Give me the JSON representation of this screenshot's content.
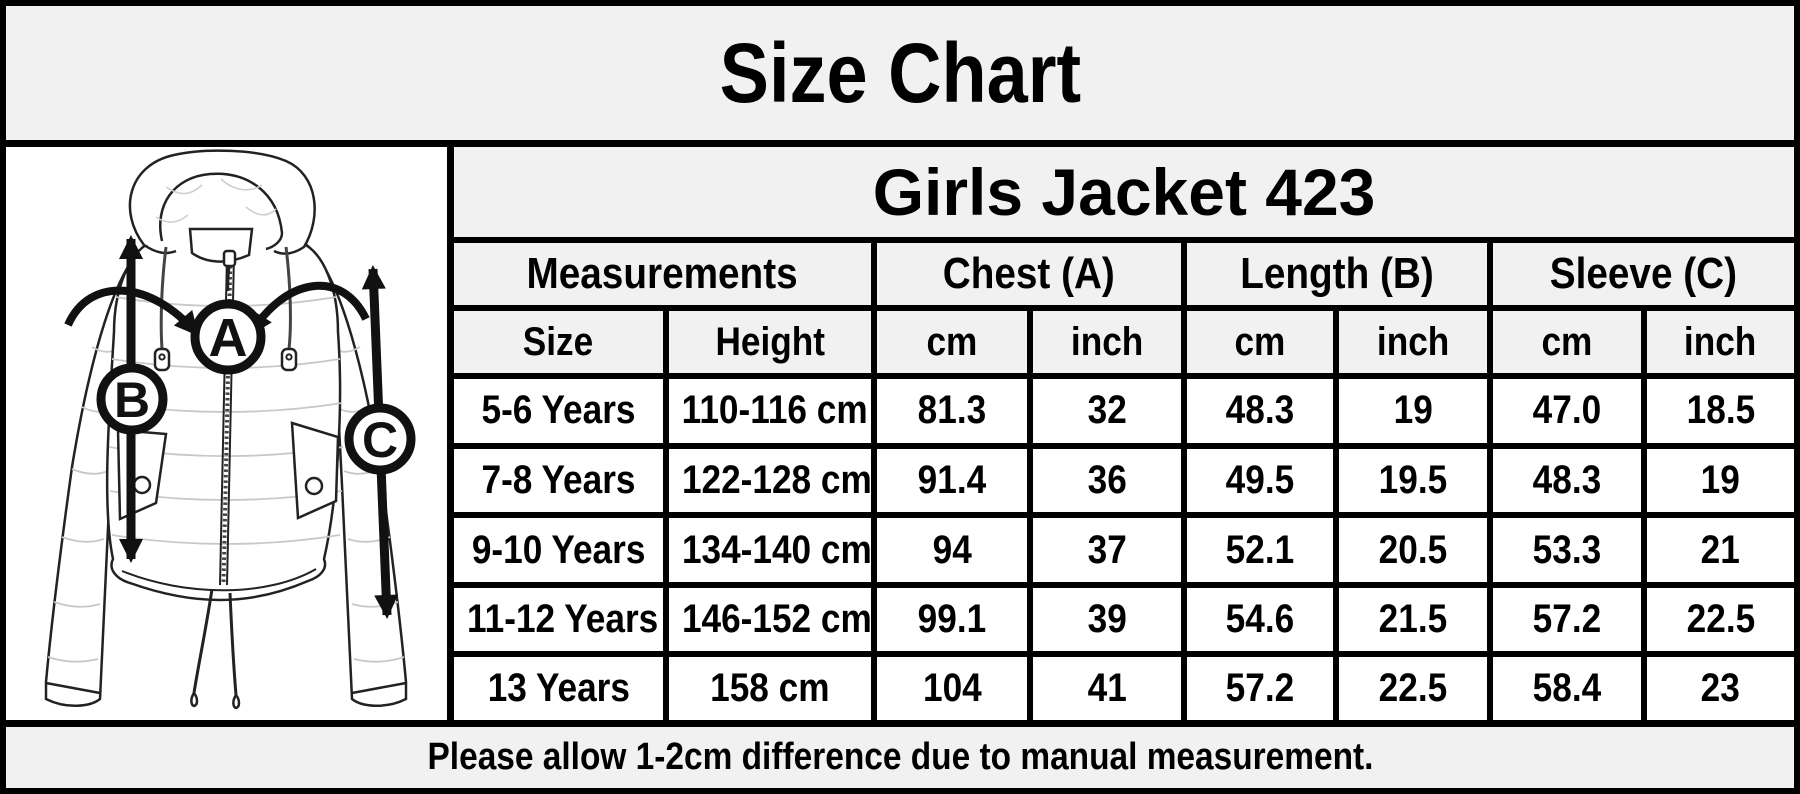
{
  "title": "Size Chart",
  "product_title": "Girls Jacket 423",
  "diagram": {
    "labels": {
      "chest": "A",
      "length": "B",
      "sleeve": "C"
    }
  },
  "table": {
    "group_headers": [
      {
        "label": "Measurements"
      },
      {
        "label": "Chest (A)"
      },
      {
        "label": "Length (B)"
      },
      {
        "label": "Sleeve (C)"
      }
    ],
    "sub_headers": [
      "Size",
      "Height",
      "cm",
      "inch",
      "cm",
      "inch",
      "cm",
      "inch"
    ],
    "rows": [
      [
        "5-6 Years",
        "110-116 cm",
        "81.3",
        "32",
        "48.3",
        "19",
        "47.0",
        "18.5"
      ],
      [
        "7-8 Years",
        "122-128 cm",
        "91.4",
        "36",
        "49.5",
        "19.5",
        "48.3",
        "19"
      ],
      [
        "9-10 Years",
        "134-140 cm",
        "94",
        "37",
        "52.1",
        "20.5",
        "53.3",
        "21"
      ],
      [
        "11-12 Years",
        "146-152 cm",
        "99.1",
        "39",
        "54.6",
        "21.5",
        "57.2",
        "22.5"
      ],
      [
        "13 Years",
        "158 cm",
        "104",
        "41",
        "57.2",
        "22.5",
        "58.4",
        "23"
      ]
    ]
  },
  "footer_note": "Please allow 1-2cm difference due to manual measurement.",
  "colors": {
    "panel_bg": "#f1f1f1",
    "cell_bg": "#ffffff",
    "border": "#000000",
    "text": "#000000",
    "quilt_line": "#c8c8c8"
  }
}
